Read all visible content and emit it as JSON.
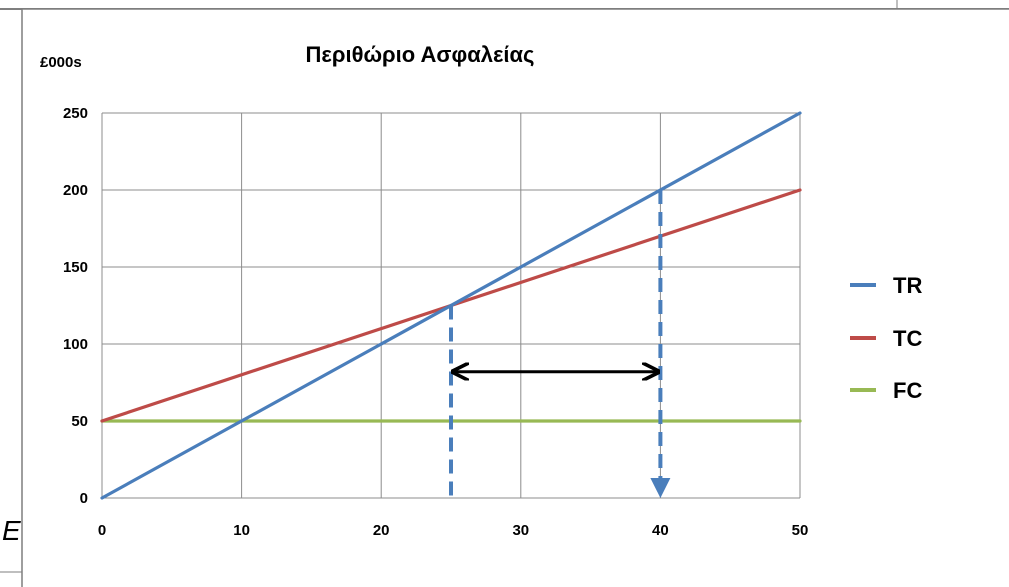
{
  "background": {
    "fragment_text": "E"
  },
  "chart_data": {
    "type": "line",
    "title": "Περιθώριο Ασφαλείας",
    "unit_label": "£000s",
    "xlabel": "",
    "ylabel": "",
    "xlim": [
      0,
      50
    ],
    "ylim": [
      0,
      250
    ],
    "x_ticks": [
      0,
      10,
      20,
      30,
      40,
      50
    ],
    "y_ticks": [
      0,
      50,
      100,
      150,
      200,
      250
    ],
    "grid": true,
    "legend_position": "right",
    "series": [
      {
        "name": "TR",
        "color": "#4a7ebb",
        "points": [
          [
            0,
            0
          ],
          [
            50,
            250
          ]
        ]
      },
      {
        "name": "TC",
        "color": "#be4b48",
        "points": [
          [
            0,
            50
          ],
          [
            50,
            200
          ]
        ]
      },
      {
        "name": "FC",
        "color": "#98b954",
        "points": [
          [
            0,
            50
          ],
          [
            50,
            50
          ]
        ]
      }
    ],
    "annotations": {
      "reference_lines": [
        {
          "x": 25,
          "y_from": 0,
          "y_to": 125,
          "color": "#4a7ebb",
          "style": "dashed"
        },
        {
          "x": 40,
          "y_from": 0,
          "y_to": 200,
          "color": "#4a7ebb",
          "style": "dashed",
          "arrowhead": "down"
        }
      ],
      "double_arrow": {
        "x_from": 25,
        "x_to": 40,
        "y": 82,
        "color": "#000000"
      }
    }
  }
}
